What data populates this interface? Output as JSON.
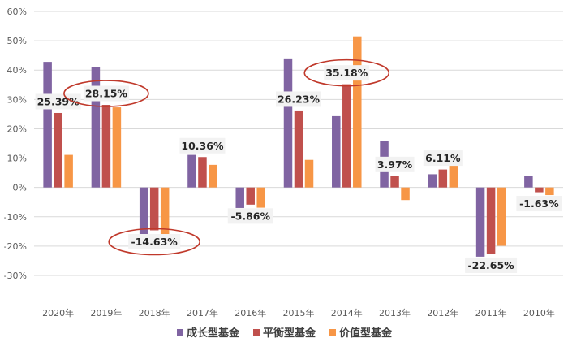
{
  "chart_data": {
    "type": "bar",
    "title": "",
    "xlabel": "",
    "ylabel": "",
    "ylim": [
      -0.3,
      0.6
    ],
    "yticks": [
      -0.3,
      -0.2,
      -0.1,
      0.0,
      0.1,
      0.2,
      0.3,
      0.4,
      0.5,
      0.6
    ],
    "ytick_labels": [
      "-30%",
      "-20%",
      "-10%",
      "0%",
      "10%",
      "20%",
      "30%",
      "40%",
      "50%",
      "60%"
    ],
    "grid": true,
    "legend_position": "bottom",
    "categories": [
      "2020年",
      "2019年",
      "2018年",
      "2017年",
      "2016年",
      "2015年",
      "2014年",
      "2013年",
      "2012年",
      "2011年",
      "2010年"
    ],
    "series": [
      {
        "name": "成长型基金",
        "color": "#8064A2",
        "values": [
          0.428,
          0.409,
          -0.193,
          0.111,
          -0.07,
          0.437,
          0.243,
          0.158,
          0.045,
          -0.236,
          0.038
        ]
      },
      {
        "name": "平衡型基金",
        "color": "#C0504D",
        "values": [
          0.2539,
          0.2815,
          -0.1463,
          0.1036,
          -0.0586,
          0.2623,
          0.3518,
          0.0397,
          0.0611,
          -0.2265,
          -0.0163
        ]
      },
      {
        "name": "价值型基金",
        "color": "#F79646",
        "values": [
          0.111,
          0.273,
          -0.18,
          0.077,
          -0.069,
          0.094,
          0.515,
          -0.043,
          0.079,
          -0.199,
          -0.026
        ]
      }
    ],
    "annotations": [
      {
        "category_index": 0,
        "series_index": 1,
        "text": "25.39%",
        "circled": false
      },
      {
        "category_index": 1,
        "series_index": 1,
        "text": "28.15%",
        "circled": true
      },
      {
        "category_index": 2,
        "series_index": 1,
        "text": "-14.63%",
        "circled": true
      },
      {
        "category_index": 3,
        "series_index": 1,
        "text": "10.36%",
        "circled": false
      },
      {
        "category_index": 4,
        "series_index": 1,
        "text": "-5.86%",
        "circled": false
      },
      {
        "category_index": 5,
        "series_index": 1,
        "text": "26.23%",
        "circled": false
      },
      {
        "category_index": 6,
        "series_index": 1,
        "text": "35.18%",
        "circled": true
      },
      {
        "category_index": 7,
        "series_index": 1,
        "text": "3.97%",
        "circled": false
      },
      {
        "category_index": 8,
        "series_index": 1,
        "text": "6.11%",
        "circled": false
      },
      {
        "category_index": 9,
        "series_index": 1,
        "text": "-22.65%",
        "circled": false
      },
      {
        "category_index": 10,
        "series_index": 1,
        "text": "-1.63%",
        "circled": false
      }
    ],
    "highlight_color": "#C0392B",
    "label_bg_color": "#F2F2F2",
    "grid_color": "#D9D9D9"
  }
}
